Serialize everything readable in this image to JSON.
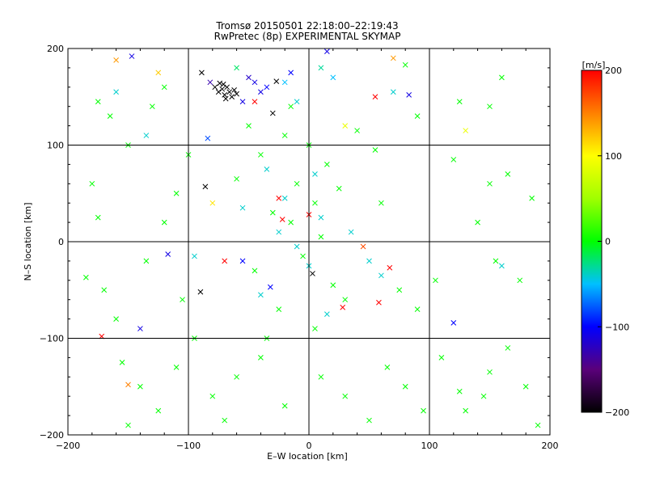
{
  "chart_data": {
    "type": "scatter",
    "title": "Tromsø 20150501 22:18:00–22:19:43",
    "subtitle": "RwPretec (8p) EXPERIMENTAL SKYMAP",
    "xlabel": "E–W location [km]",
    "ylabel": "N–S location [km]",
    "xlim": [
      -200,
      200
    ],
    "ylim": [
      -200,
      200
    ],
    "xticks": [
      -200,
      -100,
      0,
      100,
      200
    ],
    "yticks": [
      -200,
      -100,
      0,
      100,
      200
    ],
    "xtick_labels": [
      "−200",
      "−100",
      "0",
      "100",
      "200"
    ],
    "ytick_labels": [
      "−200",
      "−100",
      "0",
      "100",
      "200"
    ],
    "grid": true,
    "colorbar": {
      "label": "[m/s]",
      "range": [
        -200,
        200
      ],
      "ticks": [
        200,
        100,
        0,
        -100,
        -200
      ],
      "tick_labels": [
        "200",
        "100",
        "0",
        "−100",
        "−200"
      ],
      "stops": [
        {
          "value": -200,
          "color": "#000000"
        },
        {
          "value": -150,
          "color": "#5a007a"
        },
        {
          "value": -100,
          "color": "#0000ff"
        },
        {
          "value": -50,
          "color": "#00c0ff"
        },
        {
          "value": 0,
          "color": "#00ff00"
        },
        {
          "value": 50,
          "color": "#a0ff00"
        },
        {
          "value": 100,
          "color": "#ffff00"
        },
        {
          "value": 150,
          "color": "#ff8000"
        },
        {
          "value": 200,
          "color": "#ff0000"
        }
      ]
    },
    "crosses": [
      {
        "x": -75,
        "y": 155,
        "v": -200
      },
      {
        "x": -72,
        "y": 158,
        "v": -200
      },
      {
        "x": -70,
        "y": 152,
        "v": -200
      },
      {
        "x": -68,
        "y": 160,
        "v": -200
      },
      {
        "x": -66,
        "y": 155,
        "v": -200
      },
      {
        "x": -64,
        "y": 150,
        "v": -200
      },
      {
        "x": -78,
        "y": 160,
        "v": -200
      },
      {
        "x": -62,
        "y": 157,
        "v": -200
      },
      {
        "x": -71,
        "y": 163,
        "v": -200
      },
      {
        "x": -69,
        "y": 148,
        "v": -200
      },
      {
        "x": -60,
        "y": 153,
        "v": -200
      },
      {
        "x": -74,
        "y": 164,
        "v": -200
      },
      {
        "x": -89,
        "y": 175,
        "v": -200
      },
      {
        "x": -86,
        "y": 57,
        "v": -200
      },
      {
        "x": -90,
        "y": -52,
        "v": -200
      },
      {
        "x": 3,
        "y": -33,
        "v": -200
      },
      {
        "x": -27,
        "y": 166,
        "v": -200
      },
      {
        "x": -30,
        "y": 133,
        "v": -200
      },
      {
        "x": -50,
        "y": 170,
        "v": -120
      },
      {
        "x": -45,
        "y": 165,
        "v": -110
      },
      {
        "x": -40,
        "y": 155,
        "v": -110
      },
      {
        "x": -82,
        "y": 165,
        "v": -130
      },
      {
        "x": -55,
        "y": 145,
        "v": -110
      },
      {
        "x": 15,
        "y": 197,
        "v": -110
      },
      {
        "x": 83,
        "y": 152,
        "v": -110
      },
      {
        "x": -147,
        "y": 192,
        "v": -110
      },
      {
        "x": -117,
        "y": -13,
        "v": -110
      },
      {
        "x": -140,
        "y": -90,
        "v": -110
      },
      {
        "x": -35,
        "y": 160,
        "v": -100
      },
      {
        "x": -15,
        "y": 175,
        "v": -100
      },
      {
        "x": 120,
        "y": -84,
        "v": -100
      },
      {
        "x": -55,
        "y": -20,
        "v": -100
      },
      {
        "x": -32,
        "y": -47,
        "v": -100
      },
      {
        "x": -84,
        "y": 107,
        "v": -80
      },
      {
        "x": -20,
        "y": 165,
        "v": -50
      },
      {
        "x": 20,
        "y": 170,
        "v": -50
      },
      {
        "x": -10,
        "y": 145,
        "v": -40
      },
      {
        "x": 10,
        "y": 180,
        "v": -30
      },
      {
        "x": -60,
        "y": 180,
        "v": -20
      },
      {
        "x": 80,
        "y": 183,
        "v": 0
      },
      {
        "x": 90,
        "y": 130,
        "v": 0
      },
      {
        "x": 125,
        "y": 145,
        "v": 0
      },
      {
        "x": 150,
        "y": 140,
        "v": 0
      },
      {
        "x": 165,
        "y": 70,
        "v": 0
      },
      {
        "x": 160,
        "y": 170,
        "v": 0
      },
      {
        "x": 185,
        "y": 45,
        "v": 0
      },
      {
        "x": -175,
        "y": 145,
        "v": 0
      },
      {
        "x": -165,
        "y": 130,
        "v": 0
      },
      {
        "x": -150,
        "y": 100,
        "v": 0
      },
      {
        "x": -130,
        "y": 140,
        "v": 0
      },
      {
        "x": -120,
        "y": 160,
        "v": 0
      },
      {
        "x": -180,
        "y": 60,
        "v": 0
      },
      {
        "x": -175,
        "y": 25,
        "v": 0
      },
      {
        "x": -185,
        "y": -37,
        "v": 0
      },
      {
        "x": -170,
        "y": -50,
        "v": 0
      },
      {
        "x": -160,
        "y": -80,
        "v": 0
      },
      {
        "x": -155,
        "y": -125,
        "v": 0
      },
      {
        "x": -140,
        "y": -150,
        "v": 0
      },
      {
        "x": -125,
        "y": -175,
        "v": 0
      },
      {
        "x": -150,
        "y": -190,
        "v": 0
      },
      {
        "x": -110,
        "y": -130,
        "v": 0
      },
      {
        "x": -95,
        "y": -100,
        "v": 0
      },
      {
        "x": -80,
        "y": -160,
        "v": 0
      },
      {
        "x": -70,
        "y": -185,
        "v": 0
      },
      {
        "x": -60,
        "y": -140,
        "v": 0
      },
      {
        "x": -40,
        "y": -120,
        "v": 0
      },
      {
        "x": -20,
        "y": -170,
        "v": 0
      },
      {
        "x": 10,
        "y": -140,
        "v": 0
      },
      {
        "x": 30,
        "y": -160,
        "v": 0
      },
      {
        "x": 50,
        "y": -185,
        "v": 0
      },
      {
        "x": 65,
        "y": -130,
        "v": 0
      },
      {
        "x": 80,
        "y": -150,
        "v": 0
      },
      {
        "x": 95,
        "y": -175,
        "v": 0
      },
      {
        "x": 110,
        "y": -120,
        "v": 0
      },
      {
        "x": 125,
        "y": -155,
        "v": 0
      },
      {
        "x": 130,
        "y": -175,
        "v": 0
      },
      {
        "x": 145,
        "y": -160,
        "v": 0
      },
      {
        "x": 150,
        "y": -135,
        "v": 0
      },
      {
        "x": 165,
        "y": -110,
        "v": 0
      },
      {
        "x": 180,
        "y": -150,
        "v": 0
      },
      {
        "x": 190,
        "y": -190,
        "v": 0
      },
      {
        "x": 175,
        "y": -40,
        "v": 0
      },
      {
        "x": 155,
        "y": -20,
        "v": 0
      },
      {
        "x": 140,
        "y": 20,
        "v": 0
      },
      {
        "x": 150,
        "y": 60,
        "v": 0
      },
      {
        "x": 120,
        "y": 85,
        "v": 0
      },
      {
        "x": 105,
        "y": -40,
        "v": 0
      },
      {
        "x": 90,
        "y": -70,
        "v": 0
      },
      {
        "x": 75,
        "y": -50,
        "v": 0
      },
      {
        "x": 60,
        "y": 40,
        "v": 0
      },
      {
        "x": 55,
        "y": 95,
        "v": 0
      },
      {
        "x": 40,
        "y": 115,
        "v": 0
      },
      {
        "x": -110,
        "y": 50,
        "v": 0
      },
      {
        "x": -100,
        "y": 90,
        "v": 0
      },
      {
        "x": -120,
        "y": 20,
        "v": 0
      },
      {
        "x": -135,
        "y": -20,
        "v": 0
      },
      {
        "x": -105,
        "y": -60,
        "v": 0
      },
      {
        "x": -60,
        "y": 65,
        "v": 0
      },
      {
        "x": -40,
        "y": 90,
        "v": 0
      },
      {
        "x": -20,
        "y": 110,
        "v": 0
      },
      {
        "x": 0,
        "y": 100,
        "v": 0
      },
      {
        "x": 15,
        "y": 80,
        "v": 0
      },
      {
        "x": -10,
        "y": 60,
        "v": 0
      },
      {
        "x": 5,
        "y": 40,
        "v": 0
      },
      {
        "x": -15,
        "y": 20,
        "v": 0
      },
      {
        "x": 10,
        "y": 5,
        "v": 0
      },
      {
        "x": -5,
        "y": -15,
        "v": 0
      },
      {
        "x": 20,
        "y": -45,
        "v": 0
      },
      {
        "x": -25,
        "y": -70,
        "v": 0
      },
      {
        "x": 5,
        "y": -90,
        "v": 0
      },
      {
        "x": -35,
        "y": -100,
        "v": 0
      },
      {
        "x": 30,
        "y": -60,
        "v": 0
      },
      {
        "x": -45,
        "y": -30,
        "v": 0
      },
      {
        "x": -30,
        "y": 30,
        "v": 0
      },
      {
        "x": 25,
        "y": 55,
        "v": 0
      },
      {
        "x": -50,
        "y": 120,
        "v": 0
      },
      {
        "x": -15,
        "y": 140,
        "v": 0
      },
      {
        "x": -25,
        "y": 10,
        "v": -40
      },
      {
        "x": -10,
        "y": -5,
        "v": -40
      },
      {
        "x": 10,
        "y": 25,
        "v": -40
      },
      {
        "x": -20,
        "y": 45,
        "v": -40
      },
      {
        "x": 5,
        "y": 70,
        "v": -40
      },
      {
        "x": -35,
        "y": 75,
        "v": -40
      },
      {
        "x": 0,
        "y": -25,
        "v": -40
      },
      {
        "x": 15,
        "y": -75,
        "v": -40
      },
      {
        "x": -40,
        "y": -55,
        "v": -40
      },
      {
        "x": 35,
        "y": 10,
        "v": -40
      },
      {
        "x": -55,
        "y": 35,
        "v": -40
      },
      {
        "x": 50,
        "y": -20,
        "v": -40
      },
      {
        "x": 60,
        "y": -35,
        "v": -40
      },
      {
        "x": 160,
        "y": -25,
        "v": -40
      },
      {
        "x": -160,
        "y": 155,
        "v": -40
      },
      {
        "x": -135,
        "y": 110,
        "v": -40
      },
      {
        "x": -95,
        "y": -15,
        "v": -40
      },
      {
        "x": 70,
        "y": 155,
        "v": -40
      },
      {
        "x": -150,
        "y": -148,
        "v": 150
      },
      {
        "x": -160,
        "y": 188,
        "v": 140
      },
      {
        "x": -172,
        "y": -98,
        "v": 200
      },
      {
        "x": -70,
        "y": -20,
        "v": 200
      },
      {
        "x": -22,
        "y": 23,
        "v": 200
      },
      {
        "x": -25,
        "y": 45,
        "v": 200
      },
      {
        "x": 67,
        "y": -27,
        "v": 200
      },
      {
        "x": 28,
        "y": -68,
        "v": 200
      },
      {
        "x": 58,
        "y": -63,
        "v": 200
      },
      {
        "x": 0,
        "y": 28,
        "v": 200
      },
      {
        "x": -45,
        "y": 145,
        "v": 200
      },
      {
        "x": 55,
        "y": 150,
        "v": 200
      },
      {
        "x": 70,
        "y": 190,
        "v": 140
      },
      {
        "x": 130,
        "y": 115,
        "v": 90
      },
      {
        "x": -125,
        "y": 175,
        "v": 120
      },
      {
        "x": 30,
        "y": 120,
        "v": 90
      },
      {
        "x": -80,
        "y": 40,
        "v": 110
      },
      {
        "x": 45,
        "y": -5,
        "v": 170
      }
    ]
  }
}
